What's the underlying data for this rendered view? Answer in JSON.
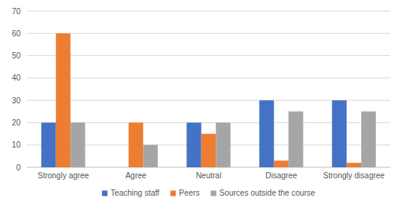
{
  "chart_data": {
    "type": "bar",
    "categories": [
      "Strongly agree",
      "Agree",
      "Neutral",
      "Disagree",
      "Strongly disagree"
    ],
    "series": [
      {
        "name": "Teaching staff",
        "color": "#4472c4",
        "values": [
          20,
          0,
          20,
          30,
          30
        ]
      },
      {
        "name": "Peers",
        "color": "#ed7d31",
        "values": [
          60,
          20,
          15,
          3,
          2
        ]
      },
      {
        "name": "Sources outside the course",
        "color": "#a5a5a5",
        "values": [
          20,
          10,
          20,
          25,
          25
        ]
      }
    ],
    "ylim": [
      0,
      70
    ],
    "yticks": [
      0,
      10,
      20,
      30,
      40,
      50,
      60,
      70
    ],
    "grid": true,
    "legend": "bottom"
  }
}
